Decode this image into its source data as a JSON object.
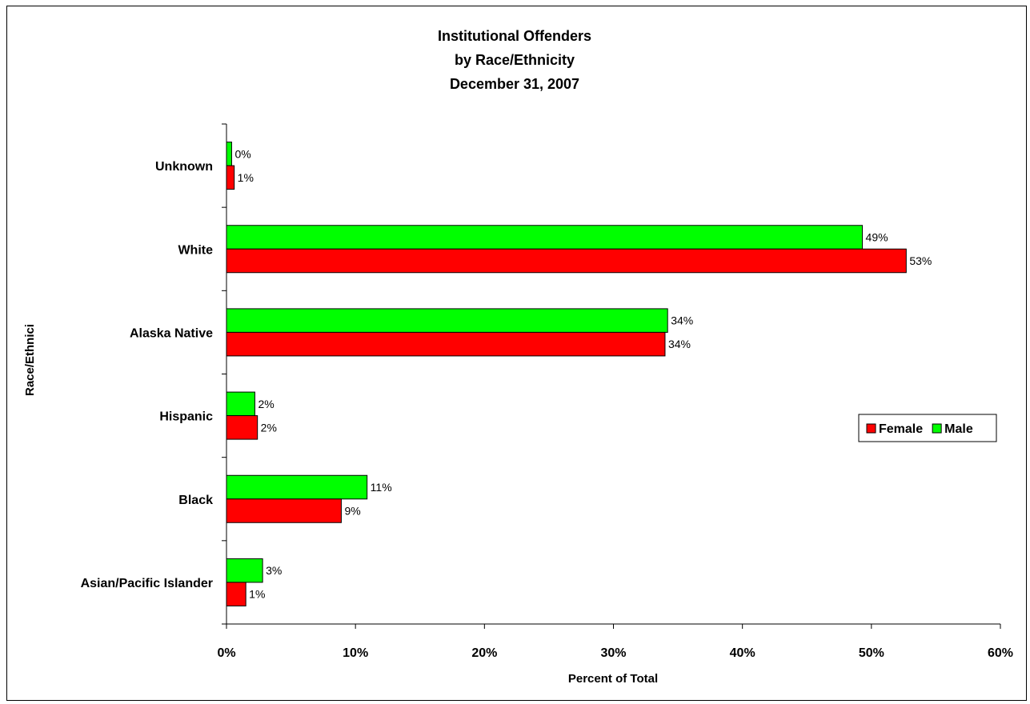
{
  "chart_data": {
    "type": "bar",
    "orientation": "horizontal",
    "title_lines": [
      "Institutional Offenders",
      "by Race/Ethnicity",
      "December 31, 2007"
    ],
    "xlabel": "Percent of Total",
    "ylabel": "Race/Ethnici",
    "xlim": [
      0,
      60
    ],
    "xticks": [
      0,
      10,
      20,
      30,
      40,
      50,
      60
    ],
    "xtick_labels": [
      "0%",
      "10%",
      "20%",
      "30%",
      "40%",
      "50%",
      "60%"
    ],
    "categories": [
      "Unknown",
      "White",
      "Alaska Native",
      "Hispanic",
      "Black",
      "Asian/Pacific Islander"
    ],
    "series": [
      {
        "name": "Male",
        "color": "#00FF00",
        "values": [
          0.4,
          49.3,
          34.2,
          2.2,
          10.9,
          2.8
        ],
        "labels": [
          "0%",
          "49%",
          "34%",
          "2%",
          "11%",
          "3%"
        ]
      },
      {
        "name": "Female",
        "color": "#FF0000",
        "values": [
          0.6,
          52.7,
          34.0,
          2.4,
          8.9,
          1.5
        ],
        "labels": [
          "1%",
          "53%",
          "34%",
          "2%",
          "9%",
          "1%"
        ]
      }
    ],
    "legend": {
      "position": "right",
      "order": [
        "Female",
        "Male"
      ]
    },
    "grid": false
  }
}
